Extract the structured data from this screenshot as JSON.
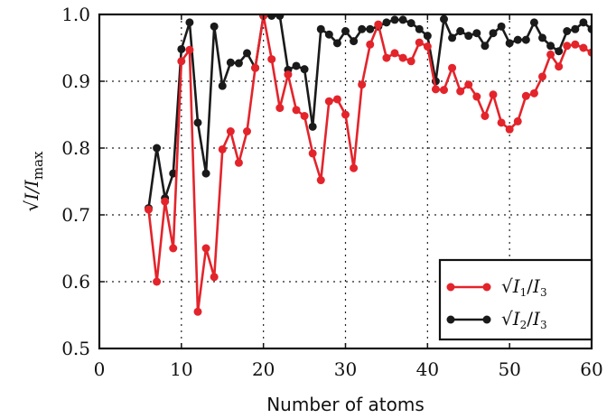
{
  "chart_data": {
    "type": "line",
    "xlabel": "Number of atoms",
    "ylabel": "√I/I_max",
    "ylabel_parts": {
      "radical": "√",
      "base": "I/I",
      "sub": "max"
    },
    "xlim": [
      0,
      60
    ],
    "ylim": [
      0.5,
      1.0
    ],
    "xticks": [
      0,
      10,
      20,
      30,
      40,
      50,
      60
    ],
    "yticks": [
      0.5,
      0.6,
      0.7,
      0.8,
      0.9,
      1.0
    ],
    "xtick_labels": [
      "0",
      "10",
      "20",
      "30",
      "40",
      "50",
      "60"
    ],
    "ytick_labels": [
      "0.5",
      "0.6",
      "0.7",
      "0.8",
      "0.9",
      "1.0"
    ],
    "grid": true,
    "legend_position": "lower-right",
    "x": [
      6,
      7,
      8,
      9,
      10,
      11,
      12,
      13,
      14,
      15,
      16,
      17,
      18,
      19,
      20,
      21,
      22,
      23,
      24,
      25,
      26,
      27,
      28,
      29,
      30,
      31,
      32,
      33,
      34,
      35,
      36,
      37,
      38,
      39,
      40,
      41,
      42,
      43,
      44,
      45,
      46,
      47,
      48,
      49,
      50,
      51,
      52,
      53,
      54,
      55,
      56,
      57,
      58,
      59,
      60
    ],
    "series": [
      {
        "name": "√(I1/I3)",
        "legend_parts": {
          "radical": "√",
          "a": "I",
          "a_sub": "1",
          "slash": "/",
          "b": "I",
          "b_sub": "3"
        },
        "color": "#e3242b",
        "values": [
          0.708,
          0.6,
          0.72,
          0.65,
          0.93,
          0.947,
          0.555,
          0.65,
          0.607,
          0.798,
          0.825,
          0.778,
          0.825,
          0.92,
          0.998,
          0.933,
          0.86,
          0.91,
          0.857,
          0.848,
          0.792,
          0.752,
          0.87,
          0.873,
          0.85,
          0.77,
          0.895,
          0.955,
          0.985,
          0.935,
          0.942,
          0.935,
          0.93,
          0.958,
          0.952,
          0.888,
          0.887,
          0.92,
          0.885,
          0.895,
          0.877,
          0.848,
          0.88,
          0.838,
          0.828,
          0.84,
          0.878,
          0.882,
          0.907,
          0.94,
          0.922,
          0.953,
          0.955,
          0.95,
          0.943
        ]
      },
      {
        "name": "√(I2/I3)",
        "legend_parts": {
          "radical": "√",
          "a": "I",
          "a_sub": "2",
          "slash": "/",
          "b": "I",
          "b_sub": "3"
        },
        "color": "#1a1a1a",
        "values": [
          0.71,
          0.8,
          0.725,
          0.762,
          0.948,
          0.988,
          0.838,
          0.762,
          0.982,
          0.893,
          0.928,
          0.927,
          0.942,
          0.92,
          0.998,
          0.998,
          0.998,
          0.917,
          0.923,
          0.918,
          0.832,
          0.978,
          0.97,
          0.957,
          0.975,
          0.96,
          0.978,
          0.978,
          0.982,
          0.988,
          0.992,
          0.992,
          0.987,
          0.978,
          0.968,
          0.9,
          0.993,
          0.965,
          0.975,
          0.968,
          0.972,
          0.953,
          0.972,
          0.982,
          0.957,
          0.962,
          0.962,
          0.988,
          0.965,
          0.953,
          0.945,
          0.975,
          0.978,
          0.988,
          0.978
        ]
      }
    ]
  }
}
